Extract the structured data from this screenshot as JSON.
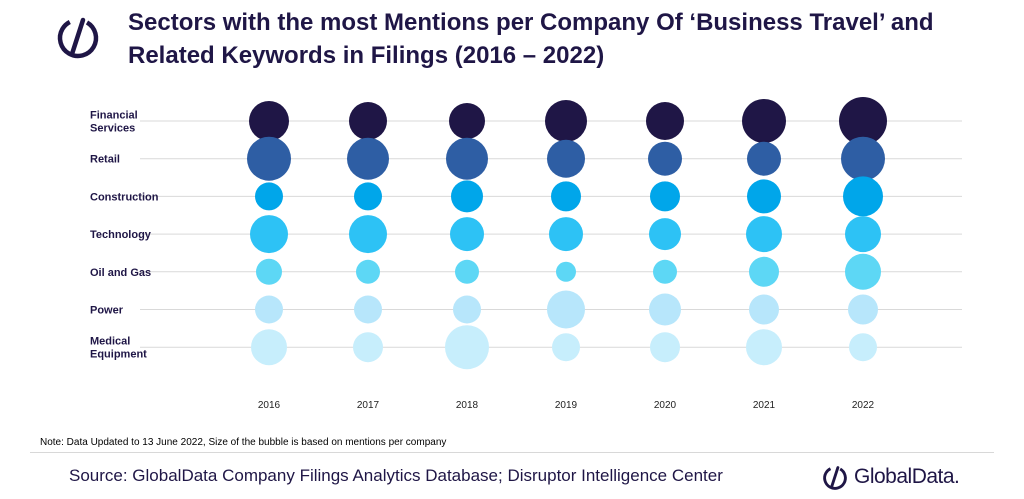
{
  "title": "Sectors with the most Mentions per Company Of ‘Business Travel’ and Related Keywords in Filings (2016 – 2022)",
  "note": "Note: Data Updated to 13 June 2022, Size of the bubble is based on mentions per company",
  "source": "Source: GlobalData Company Filings Analytics Database; Disruptor Intelligence Center",
  "brand": "GlobalData.",
  "icons": {
    "top_logo": "globaldata-logo-icon",
    "brand_logo": "globaldata-logo-icon"
  },
  "colors": {
    "title": "#1f1646",
    "gridline": "#d9d9d9",
    "sectors": {
      "Financial Services": "#1f1646",
      "Retail": "#2e5ea4",
      "Construction": "#00a6ea",
      "Technology": "#2dc2f5",
      "Oil and Gas": "#5dd7f5",
      "Power": "#b7e6fb",
      "Medical Equipment": "#c7eefc"
    }
  },
  "chart_data": {
    "type": "bubble",
    "title": "Sectors with the most Mentions per Company Of ‘Business Travel’ and Related Keywords in Filings (2016 – 2022)",
    "x_categories": [
      "2016",
      "2017",
      "2018",
      "2019",
      "2020",
      "2021",
      "2022"
    ],
    "y_categories": [
      "Financial Services",
      "Retail",
      "Construction",
      "Technology",
      "Oil and Gas",
      "Power",
      "Medical Equipment"
    ],
    "size_meaning": "mentions per company (relative, estimated from bubble size)",
    "grid": true,
    "series": [
      {
        "name": "Financial Services",
        "values": [
          20,
          19,
          18,
          21,
          19,
          22,
          24
        ]
      },
      {
        "name": "Retail",
        "values": [
          22,
          21,
          21,
          19,
          17,
          17,
          22
        ]
      },
      {
        "name": "Construction",
        "values": [
          14,
          14,
          16,
          15,
          15,
          17,
          20
        ]
      },
      {
        "name": "Technology",
        "values": [
          19,
          19,
          17,
          17,
          16,
          18,
          18
        ]
      },
      {
        "name": "Oil and Gas",
        "values": [
          13,
          12,
          12,
          10,
          12,
          15,
          18
        ]
      },
      {
        "name": "Power",
        "values": [
          14,
          14,
          14,
          19,
          16,
          15,
          15
        ]
      },
      {
        "name": "Medical Equipment",
        "values": [
          18,
          15,
          22,
          14,
          15,
          18,
          14
        ]
      }
    ]
  }
}
